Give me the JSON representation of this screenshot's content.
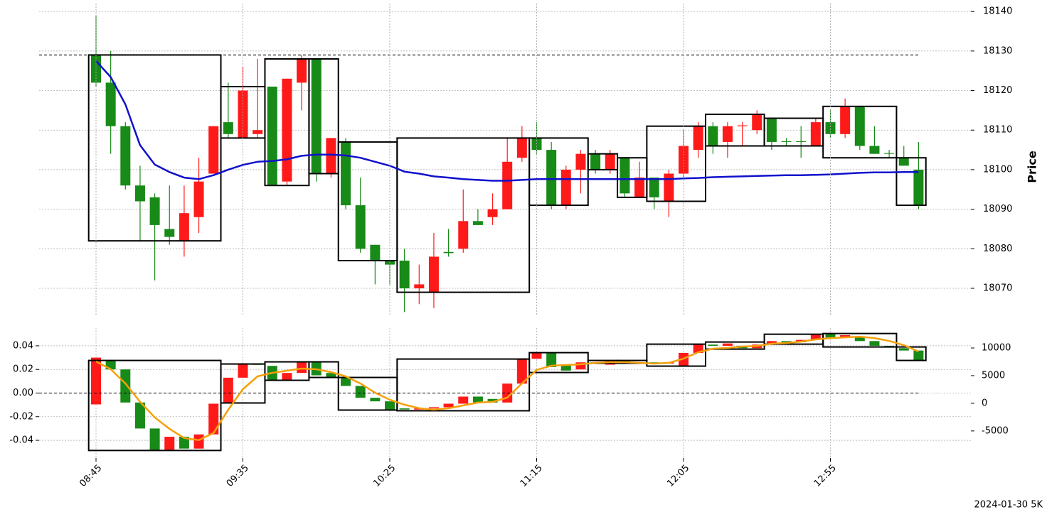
{
  "footer": "2024-01-30 5K",
  "chart_data": [
    {
      "type": "candlestick",
      "ylabel": "Price",
      "ylim": [
        18063,
        18142
      ],
      "yticks": [
        18070,
        18080,
        18090,
        18100,
        18110,
        18120,
        18130,
        18140
      ],
      "grid": true,
      "up_color": "#ff1a1a",
      "down_color": "#188a18",
      "open": [
        18129,
        18122,
        18111,
        18096,
        18093,
        18085,
        18082,
        18088,
        18099,
        18112,
        18108,
        18109,
        18121,
        18097,
        18122,
        18128,
        18099,
        18107,
        18091,
        18081,
        18077,
        18077,
        18070,
        18069,
        18079.2,
        18080,
        18087,
        18088,
        18090,
        18103,
        18108,
        18105,
        18091,
        18100,
        18104,
        18100,
        18103,
        18093,
        18098,
        18092,
        18099,
        18105,
        18111,
        18107,
        18111,
        18110,
        18113,
        18107.2,
        18107.2,
        18106,
        18112,
        18109,
        18116,
        18106,
        18104.2,
        18103,
        18100
      ],
      "high": [
        18139,
        18130,
        18112,
        18101,
        18094,
        18096,
        18096,
        18103,
        18111,
        18122,
        18126,
        18128,
        18121,
        18123,
        18129,
        18128,
        18108,
        18108,
        18098,
        18081,
        18077,
        18080,
        18076,
        18084,
        18085,
        18095,
        18090,
        18094,
        18108,
        18111,
        18112,
        18107,
        18101,
        18105,
        18105,
        18105,
        18103,
        18102,
        18098,
        18100,
        18110,
        18112,
        18112,
        18112,
        18112,
        18115,
        18113,
        18108,
        18111,
        18113,
        18115,
        18118,
        18116,
        18111,
        18105,
        18106,
        18107
      ],
      "low": [
        18121,
        18104,
        18095,
        18082,
        18072,
        18081,
        18078,
        18084,
        18099,
        18108,
        18108,
        18108,
        18096,
        18096,
        18115,
        18097,
        18098,
        18090,
        18079,
        18071,
        18071,
        18064,
        18066,
        18065,
        18078,
        18079,
        18086,
        18086,
        18090,
        18102,
        18104,
        18090,
        18090,
        18094,
        18099,
        18099,
        18093,
        18093,
        18090,
        18088,
        18098,
        18103,
        18104,
        18103,
        18106,
        18109,
        18105,
        18106,
        18103,
        18106,
        18108,
        18108,
        18105,
        18104,
        18103,
        18101,
        18090
      ],
      "close": [
        18122,
        18111,
        18096,
        18092,
        18086,
        18083,
        18089,
        18097,
        18111,
        18109,
        18120,
        18110,
        18096,
        18123,
        18128,
        18099,
        18108,
        18091,
        18080,
        18077,
        18076,
        18070,
        18071,
        18078,
        18078.9,
        18087,
        18086,
        18090,
        18102,
        18108,
        18105,
        18091,
        18100,
        18104,
        18100,
        18104,
        18094,
        18098,
        18093,
        18099,
        18106,
        18111,
        18106,
        18111,
        18111.2,
        18114,
        18107,
        18107,
        18107,
        18112,
        18109,
        18116,
        18106,
        18104,
        18104,
        18101,
        18091
      ],
      "line": {
        "color": "#1010cc",
        "values": [
          18127.5,
          18123.4,
          18116.5,
          18106.2,
          18101.3,
          18099.4,
          18098,
          18097.6,
          18098.6,
          18100,
          18101.2,
          18102,
          18102.2,
          18102.6,
          18103.5,
          18103.8,
          18103.8,
          18103.6,
          18103,
          18102,
          18101,
          18099.5,
          18099,
          18098.3,
          18098,
          18097.6,
          18097.4,
          18097.2,
          18097.2,
          18097.4,
          18097.6,
          18097.6,
          18097.6,
          18097.6,
          18097.6,
          18097.6,
          18097.6,
          18097.6,
          18097.6,
          18097.6,
          18097.8,
          18097.9,
          18098.1,
          18098.2,
          18098.3,
          18098.4,
          18098.5,
          18098.6,
          18098.6,
          18098.7,
          18098.8,
          18099,
          18099.2,
          18099.3,
          18099.3,
          18099.4,
          18099.4
        ]
      },
      "hline": 18129,
      "boxes": [
        {
          "start": 0,
          "end": 8,
          "high": 18129,
          "low": 18082
        },
        {
          "start": 9,
          "end": 11,
          "high": 18121,
          "low": 18108
        },
        {
          "start": 12,
          "end": 14,
          "high": 18128,
          "low": 18096
        },
        {
          "start": 15,
          "end": 16,
          "high": 18128,
          "low": 18099
        },
        {
          "start": 17,
          "end": 20,
          "high": 18107,
          "low": 18077
        },
        {
          "start": 21,
          "end": 29,
          "high": 18108,
          "low": 18069
        },
        {
          "start": 30,
          "end": 33,
          "high": 18108,
          "low": 18091
        },
        {
          "start": 34,
          "end": 35,
          "high": 18104,
          "low": 18100
        },
        {
          "start": 36,
          "end": 37,
          "high": 18103,
          "low": 18093
        },
        {
          "start": 38,
          "end": 41,
          "high": 18111,
          "low": 18092
        },
        {
          "start": 42,
          "end": 45,
          "high": 18114,
          "low": 18106
        },
        {
          "start": 46,
          "end": 49,
          "high": 18113,
          "low": 18106
        },
        {
          "start": 50,
          "end": 54,
          "high": 18116,
          "low": 18103
        },
        {
          "start": 55,
          "end": 56,
          "high": 18103,
          "low": 18091
        }
      ]
    },
    {
      "type": "candlestick",
      "categories": [
        "08:45",
        null,
        null,
        null,
        null,
        null,
        null,
        null,
        null,
        null,
        "09:35",
        null,
        null,
        null,
        null,
        null,
        null,
        null,
        null,
        null,
        "10:25",
        null,
        null,
        null,
        null,
        null,
        null,
        null,
        null,
        null,
        "11:15",
        null,
        null,
        null,
        null,
        null,
        null,
        null,
        null,
        null,
        "12:05",
        null,
        null,
        null,
        null,
        null,
        null,
        null,
        null,
        null,
        "12:55",
        null,
        null,
        null,
        null,
        null,
        null
      ],
      "ylim": [
        -0.055,
        0.055
      ],
      "yticks": [
        -0.04,
        -0.02,
        {
          "value": 0,
          "label": "0.00"
        },
        0.02,
        0.04
      ],
      "y2lim": [
        -9900,
        13600
      ],
      "y2ticks": [
        -5000,
        0,
        5000,
        10000
      ],
      "grid": true,
      "up_color": "#ff1a1a",
      "down_color": "#188a18",
      "open": [
        -0.0096,
        0.028,
        0.02,
        -0.008,
        -0.03,
        -0.049,
        -0.037,
        -0.047,
        -0.035,
        -0.008,
        0.013,
        0.0245,
        0.023,
        0.011,
        0.017,
        0.026,
        0.017,
        0.013,
        0.006,
        -0.004,
        -0.007,
        -0.013,
        -0.014,
        -0.013,
        -0.012,
        -0.009,
        -0.003,
        -0.005,
        -0.008,
        0.008,
        0.029,
        0.034,
        0.024,
        0.02,
        0.026,
        0.024,
        0.027,
        0.025,
        0.026,
        0.025,
        0.023,
        0.034,
        0.041,
        0.04,
        0.04,
        0.038,
        0.041,
        0.044,
        0.043,
        0.045,
        0.05,
        0.047,
        0.048,
        0.044,
        0.04,
        0.038,
        0.036
      ],
      "close": [
        0.03,
        0.02,
        -0.008,
        -0.03,
        -0.049,
        -0.037,
        -0.047,
        -0.035,
        -0.009,
        0.013,
        0.025,
        0.024,
        0.011,
        0.017,
        0.026,
        0.015,
        0.013,
        0.006,
        -0.004,
        -0.007,
        -0.014,
        -0.014,
        -0.013,
        -0.012,
        -0.009,
        -0.003,
        -0.008,
        -0.008,
        0.008,
        0.029,
        0.034,
        0.022,
        0.019,
        0.026,
        0.025,
        0.027,
        0.025,
        0.026,
        0.025,
        0.026,
        0.034,
        0.041,
        0.04,
        0.042,
        0.038,
        0.041,
        0.044,
        0.043,
        0.045,
        0.05,
        0.047,
        0.049,
        0.044,
        0.04,
        0.039,
        0.036,
        0.028
      ],
      "line": {
        "color": "#f5a00a",
        "axis": "y2",
        "values": [
          7560,
          6150,
          3590,
          260,
          -2560,
          -4620,
          -6280,
          -6670,
          -5380,
          -1150,
          2560,
          4870,
          5510,
          5900,
          6280,
          6150,
          5640,
          4870,
          3590,
          1920,
          640,
          -260,
          -900,
          -1150,
          -900,
          -380,
          130,
          260,
          1030,
          3590,
          6030,
          6790,
          6920,
          7050,
          7310,
          7440,
          7440,
          7310,
          7180,
          7310,
          8080,
          9230,
          9870,
          10000,
          10260,
          10380,
          10770,
          10900,
          11150,
          11540,
          11790,
          11920,
          12050,
          11790,
          11280,
          10510,
          9360
        ]
      },
      "hline": 0,
      "boxes": [
        {
          "start": 0,
          "end": 8,
          "high": 0.0276,
          "low": -0.0486
        },
        {
          "start": 9,
          "end": 11,
          "high": 0.0246,
          "low": -0.0084
        },
        {
          "start": 12,
          "end": 14,
          "high": 0.0264,
          "low": 0.0108
        },
        {
          "start": 15,
          "end": 16,
          "high": 0.0264,
          "low": 0.0132
        },
        {
          "start": 17,
          "end": 20,
          "high": 0.0132,
          "low": -0.0144
        },
        {
          "start": 21,
          "end": 29,
          "high": 0.0288,
          "low": -0.015
        },
        {
          "start": 30,
          "end": 33,
          "high": 0.0342,
          "low": 0.0174
        },
        {
          "start": 34,
          "end": 35,
          "high": 0.0276,
          "low": 0.0252
        },
        {
          "start": 36,
          "end": 37,
          "high": 0.0276,
          "low": 0.0252
        },
        {
          "start": 38,
          "end": 41,
          "high": 0.0414,
          "low": 0.0228
        },
        {
          "start": 42,
          "end": 45,
          "high": 0.0432,
          "low": 0.0372
        },
        {
          "start": 46,
          "end": 49,
          "high": 0.0498,
          "low": 0.0414
        },
        {
          "start": 50,
          "end": 54,
          "high": 0.0504,
          "low": 0.039
        },
        {
          "start": 55,
          "end": 56,
          "high": 0.039,
          "low": 0.0276
        }
      ]
    }
  ]
}
